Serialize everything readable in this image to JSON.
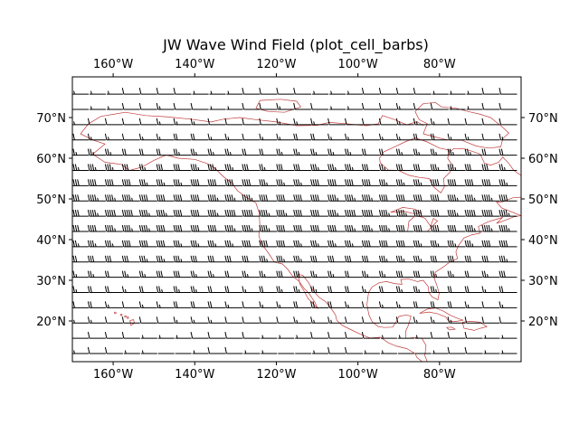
{
  "title": "JW Wave Wind Field (plot_cell_barbs)",
  "colors": {
    "barbs": "#000000",
    "coastline": "#c23b3b",
    "frame": "#000000",
    "background": "#ffffff"
  },
  "chart_data": {
    "type": "wind-barb map",
    "projection": "PlateCarree",
    "lon_range": [
      -170,
      -60
    ],
    "lat_range": [
      10,
      80
    ],
    "x_ticks": [
      -160,
      -140,
      -120,
      -100,
      -80
    ],
    "x_tick_labels": [
      "160°W",
      "140°W",
      "120°W",
      "100°W",
      "80°W"
    ],
    "y_ticks": [
      20,
      30,
      40,
      50,
      60,
      70
    ],
    "y_tick_labels": [
      "20°N",
      "30°N",
      "40°N",
      "50°N",
      "60°N",
      "70°N"
    ],
    "tick_labels_on": [
      "top",
      "bottom",
      "left",
      "right"
    ],
    "grid": false,
    "barb_grid": {
      "lon_start": -170,
      "lon_step": 4.2,
      "lon_count": 26,
      "lat_start": 12,
      "lat_step": 3.75,
      "lat_count": 18
    },
    "wind_direction": "westerly (pointing east)",
    "wind_speed_profile_kt": {
      "latitudes": [
        12,
        20,
        30,
        40,
        45,
        50,
        55,
        60,
        65,
        70,
        78
      ],
      "speeds": [
        5,
        12,
        25,
        40,
        45,
        42,
        35,
        25,
        15,
        10,
        8
      ]
    },
    "coastline": "North America (Alaska, Canada, contiguous US, Mexico, Central America, Caribbean, Hudson Bay, Great Lakes, Hawaii)"
  }
}
